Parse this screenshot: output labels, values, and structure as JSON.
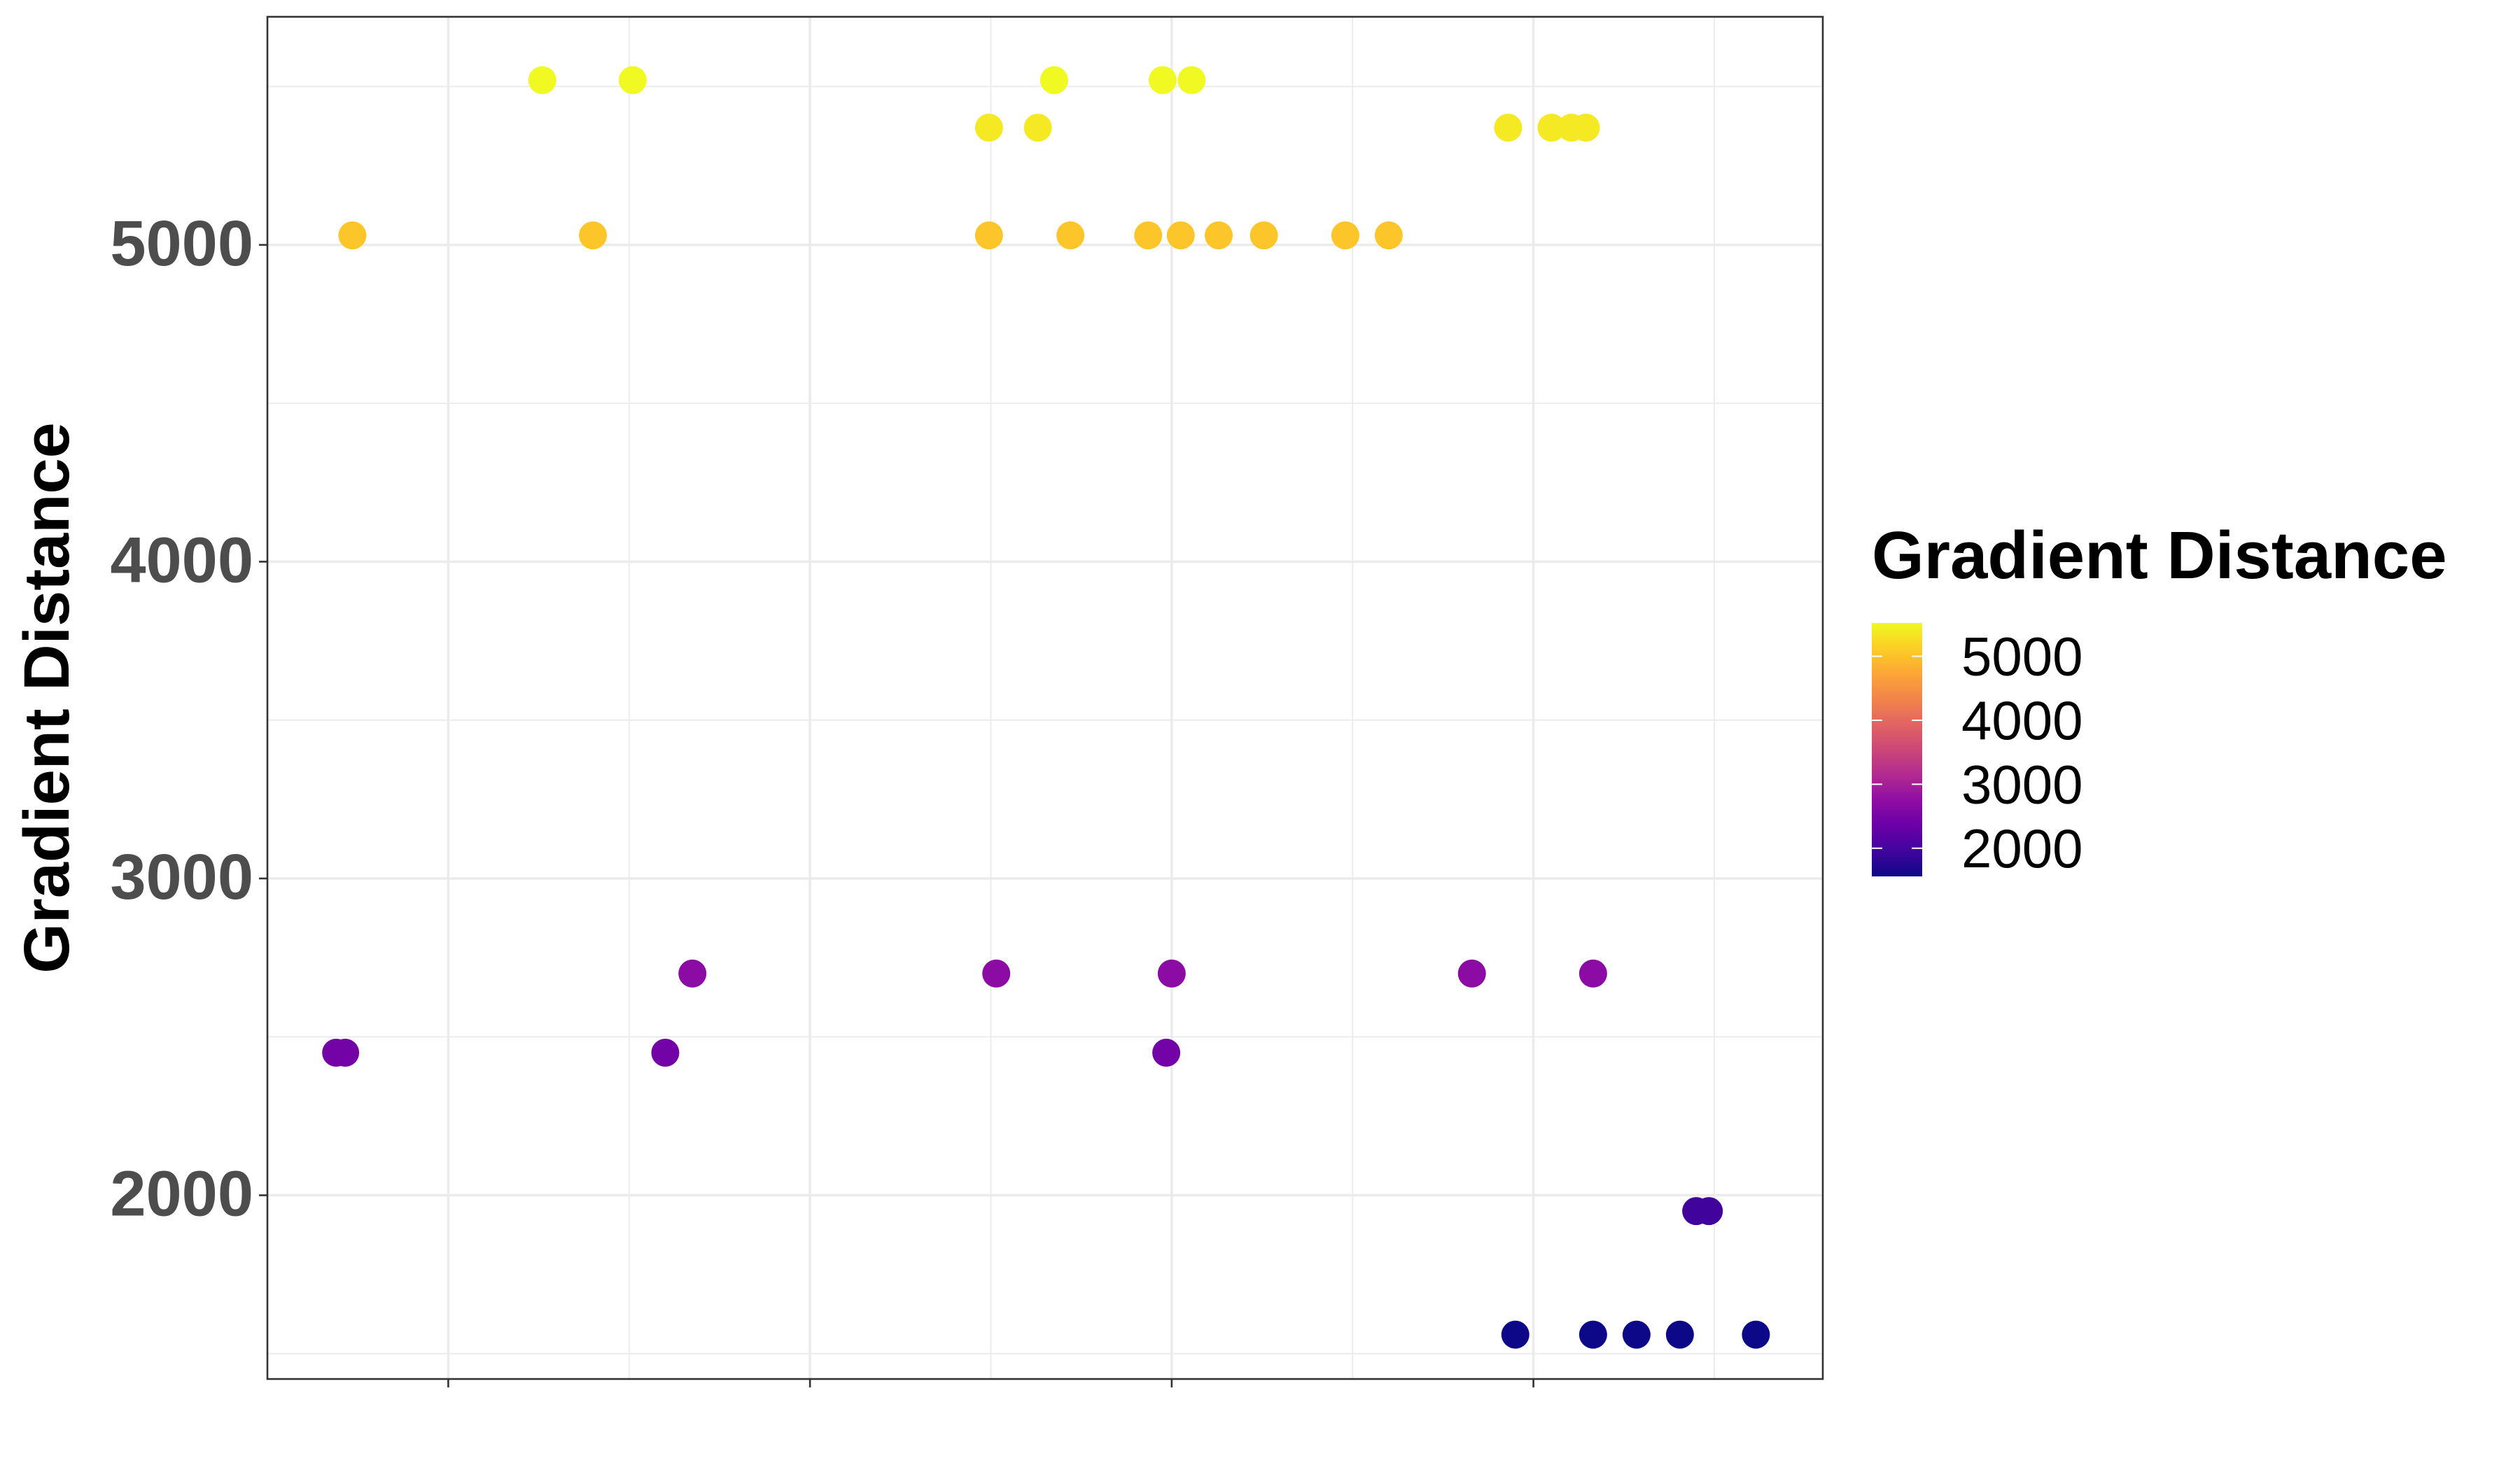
{
  "chart_data": {
    "type": "scatter",
    "title": "",
    "xlabel": "",
    "ylabel": "Gradient Distance",
    "ylim": [
      1420,
      5720
    ],
    "xlim": [
      0.5,
      9.1
    ],
    "y_ticks": [
      2000,
      3000,
      4000,
      5000
    ],
    "y_tick_labels": [
      "2000",
      "3000",
      "4000",
      "5000"
    ],
    "x_tick_count": 4,
    "x_tick_labels": [],
    "grid": true,
    "legend": {
      "title": "Gradient Distance",
      "placement": "right",
      "type": "colorbar",
      "palette": "plasma",
      "range": [
        1560,
        5520
      ],
      "breaks": [
        2000,
        3000,
        4000,
        5000
      ],
      "break_labels": [
        "2000",
        "3000",
        "4000",
        "5000"
      ]
    },
    "points": [
      {
        "x": 0.88,
        "y": 2450
      },
      {
        "x": 0.93,
        "y": 2450
      },
      {
        "x": 0.97,
        "y": 5030
      },
      {
        "x": 2.02,
        "y": 5520
      },
      {
        "x": 2.3,
        "y": 5030
      },
      {
        "x": 2.52,
        "y": 5520
      },
      {
        "x": 2.7,
        "y": 2450
      },
      {
        "x": 2.85,
        "y": 2700
      },
      {
        "x": 4.49,
        "y": 5370
      },
      {
        "x": 4.49,
        "y": 5030
      },
      {
        "x": 4.53,
        "y": 2700
      },
      {
        "x": 4.76,
        "y": 5370
      },
      {
        "x": 4.85,
        "y": 5520
      },
      {
        "x": 4.94,
        "y": 5030
      },
      {
        "x": 5.37,
        "y": 5030
      },
      {
        "x": 5.45,
        "y": 5520
      },
      {
        "x": 5.47,
        "y": 2450
      },
      {
        "x": 5.5,
        "y": 2700
      },
      {
        "x": 5.55,
        "y": 5030
      },
      {
        "x": 5.61,
        "y": 5520
      },
      {
        "x": 5.76,
        "y": 5030
      },
      {
        "x": 6.01,
        "y": 5030
      },
      {
        "x": 6.46,
        "y": 5030
      },
      {
        "x": 6.7,
        "y": 5030
      },
      {
        "x": 7.16,
        "y": 2700
      },
      {
        "x": 7.36,
        "y": 5370
      },
      {
        "x": 7.4,
        "y": 1560
      },
      {
        "x": 7.6,
        "y": 5370
      },
      {
        "x": 7.71,
        "y": 5370
      },
      {
        "x": 7.79,
        "y": 5370
      },
      {
        "x": 7.83,
        "y": 2700
      },
      {
        "x": 7.83,
        "y": 1560
      },
      {
        "x": 8.07,
        "y": 1560
      },
      {
        "x": 8.31,
        "y": 1560
      },
      {
        "x": 8.4,
        "y": 1950
      },
      {
        "x": 8.47,
        "y": 1950
      },
      {
        "x": 8.73,
        "y": 1560
      }
    ]
  }
}
